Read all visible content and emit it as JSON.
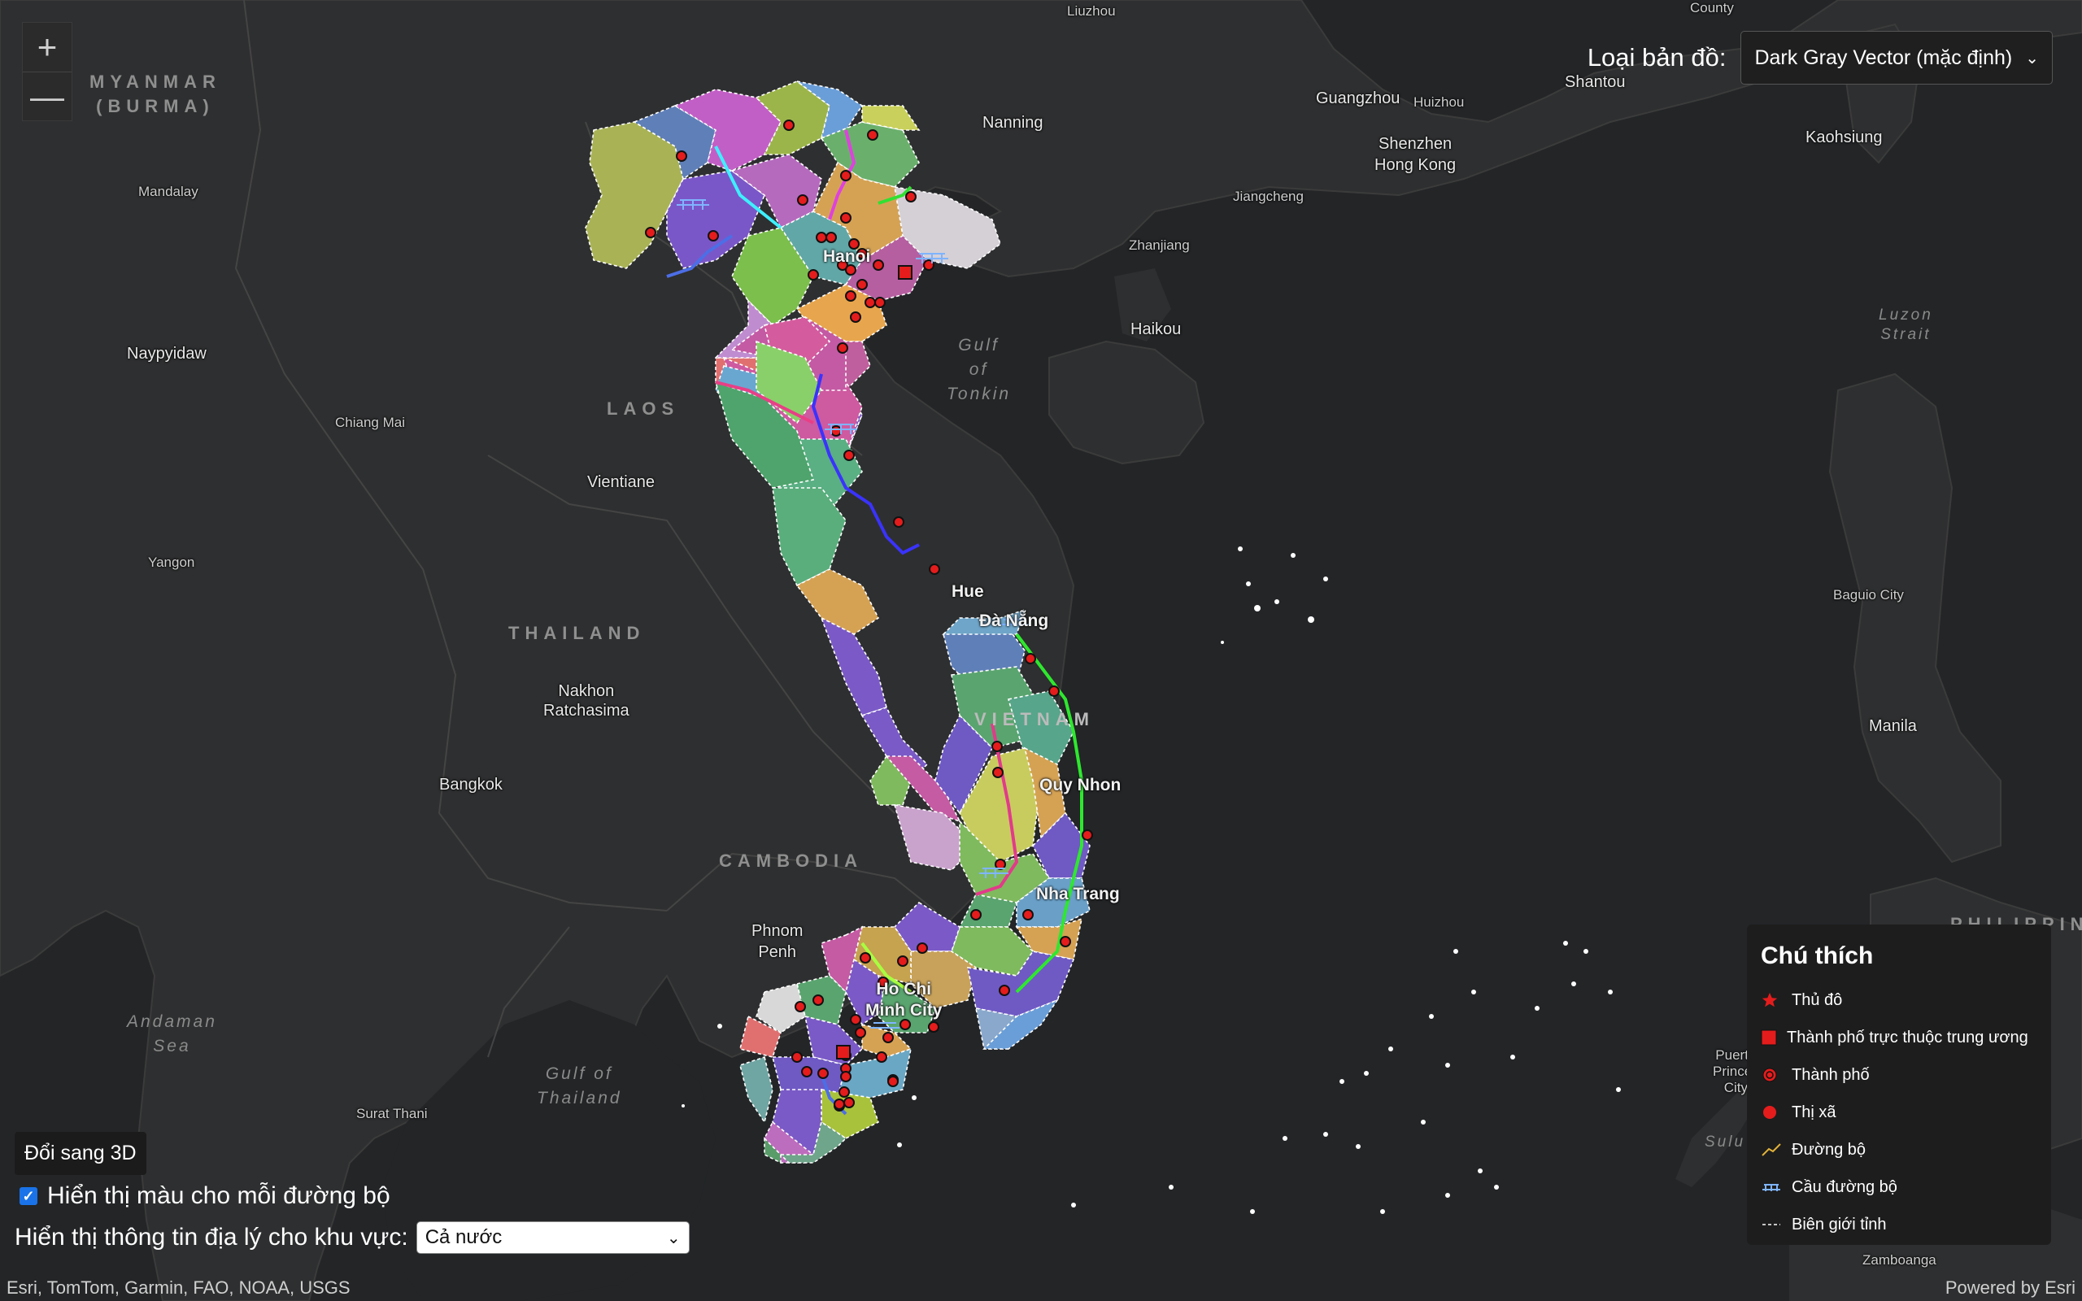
{
  "map_labels": {
    "myanmar": "MYANMAR\n(BURMA)",
    "laos": "LAOS",
    "thailand": "THAILAND",
    "cambodia": "CAMBODIA",
    "vietnam": "VIETNAM",
    "philippines": "PHILIPPIN",
    "gulf_tonkin": "Gulf\nof\nTonkin",
    "gulf_thailand": "Gulf of\nThailand",
    "andaman": "Andaman\nSea",
    "luzon_strait": "Luzon\nStrait",
    "sulu": "Sulu",
    "liuzhou": "Liuzhou",
    "county": "County",
    "mandalay": "Mandalay",
    "nanning": "Nanning",
    "guangzhou": "Guangzhou",
    "huizhou": "Huizhou",
    "shantou": "Shantou",
    "shenzhen": "Shenzhen\nHong Kong",
    "kaohsiung": "Kaohsiung",
    "jiangcheng": "Jiangcheng",
    "zhanjiang": "Zhanjiang",
    "haikou": "Haikou",
    "naypyidaw": "Naypyidaw",
    "chiang_mai": "Chiang Mai",
    "vientiane": "Vientiane",
    "yangon": "Yangon",
    "nakhon": "Nakhon\nRatchasima",
    "bangkok": "Bangkok",
    "phnom_penh": "Phnom\nPenh",
    "surat_thani": "Surat Thani",
    "baguio": "Baguio City",
    "manila": "Manila",
    "puerto": "Puerto\nPrinces\nCity",
    "zamboanga": "Zamboanga",
    "hanoi": "Hanoi",
    "hue": "Hue",
    "da_nang": "Đà Nẵng",
    "quy_nhon": "Quy Nhon",
    "nha_trang": "Nha Trang",
    "hcmc": "Ho Chi\nMinh City"
  },
  "zoom": {
    "in": "+",
    "out": "—"
  },
  "basemap": {
    "label": "Loại bản đồ:",
    "selected": "Dark Gray Vector (mặc định)"
  },
  "controls": {
    "toggle_3d": "Đổi sang 3D",
    "road_color_label": "Hiển thị màu cho mỗi đường bộ",
    "road_color_checked": true,
    "region_label": "Hiển thị thông tin địa lý cho khu vực:",
    "region_selected": "Cả nước"
  },
  "legend": {
    "title": "Chú thích",
    "items": [
      {
        "label": "Thủ đô",
        "icon": "star-icon"
      },
      {
        "label": "Thành phố trực thuộc trung ương",
        "icon": "square-icon"
      },
      {
        "label": "Thành phố",
        "icon": "ring-icon"
      },
      {
        "label": "Thị xã",
        "icon": "dot-icon"
      },
      {
        "label": "Đường bộ",
        "icon": "road-line-icon"
      },
      {
        "label": "Cầu đường bộ",
        "icon": "bridge-icon"
      },
      {
        "label": "Biên giới tỉnh",
        "icon": "dashed-line-icon"
      }
    ]
  },
  "attribution": {
    "left": "Esri, TomTom, Garmin, FAO, NOAA, USGS",
    "right": "Powered by Esri"
  },
  "colors": {
    "background": "#242424",
    "land": "#2f2f2f",
    "capital": "#e51c1c",
    "province_border": "#ffffff"
  }
}
